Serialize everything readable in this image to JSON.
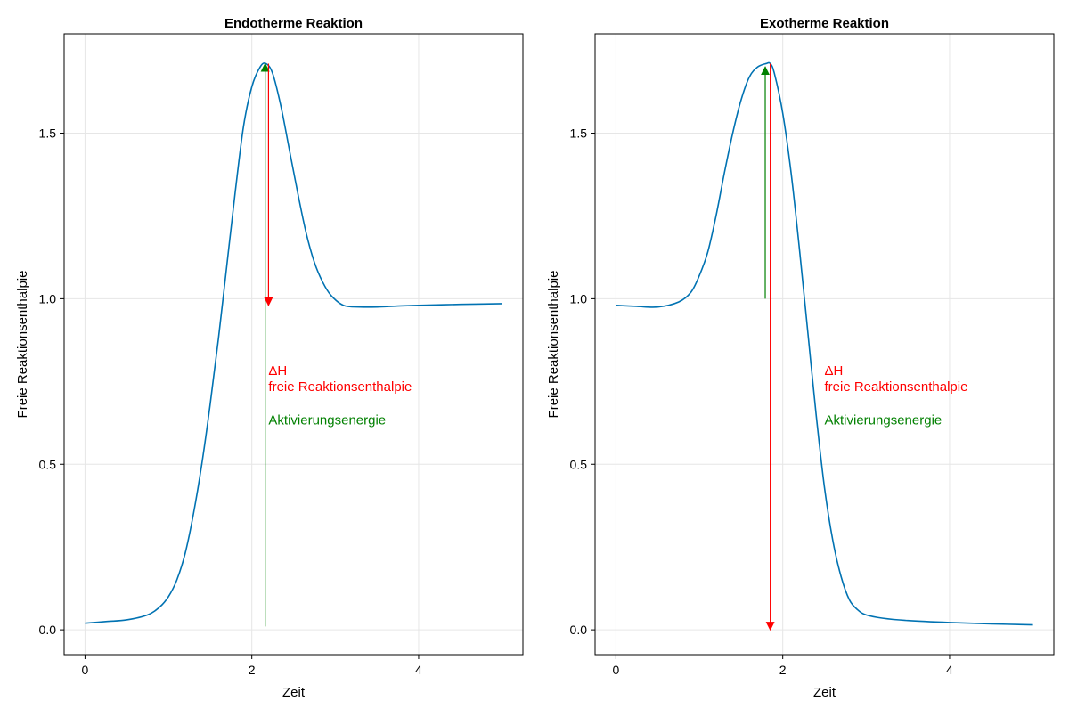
{
  "chart_data": [
    {
      "type": "line",
      "title": "Endotherme Reaktion",
      "xlabel": "Zeit",
      "ylabel": "Freie Reaktionsenthalpie",
      "xlim": [
        -0.25,
        5.25
      ],
      "ylim": [
        -0.075,
        1.8
      ],
      "xticks": [
        0,
        2,
        4
      ],
      "yticks": [
        0.0,
        0.5,
        1.0,
        1.5
      ],
      "grid": true,
      "line_color": "#0072b2",
      "series": [
        {
          "x": [
            0,
            0.25,
            0.5,
            0.75,
            0.9,
            1.0,
            1.1,
            1.2,
            1.3,
            1.4,
            1.5,
            1.6,
            1.7,
            1.8,
            1.9,
            2.0,
            2.1,
            2.17,
            2.25,
            2.35,
            2.45,
            2.55,
            2.65,
            2.75,
            2.85,
            2.95,
            3.1,
            3.3,
            3.5,
            3.75,
            4.0,
            4.5,
            5.0
          ],
          "y": [
            0.02,
            0.025,
            0.03,
            0.045,
            0.07,
            0.1,
            0.15,
            0.23,
            0.35,
            0.5,
            0.68,
            0.88,
            1.1,
            1.32,
            1.52,
            1.64,
            1.7,
            1.71,
            1.68,
            1.58,
            1.45,
            1.32,
            1.2,
            1.11,
            1.05,
            1.01,
            0.98,
            0.975,
            0.975,
            0.978,
            0.98,
            0.983,
            0.985
          ]
        }
      ],
      "annotations": [
        {
          "type": "arrow",
          "label": "Aktivierungsenergie",
          "color": "#008000",
          "x": 2.16,
          "y_from": 0.01,
          "y_to": 1.71
        },
        {
          "type": "arrow",
          "label": "freie Reaktionsenthalpie",
          "color": "#ff0000",
          "x": 2.2,
          "y_from": 1.71,
          "y_to": 0.98
        }
      ],
      "text_labels": [
        {
          "lines": [
            "ΔH",
            "freie Reaktionsenthalpie"
          ],
          "color": "#ff0000",
          "x": 2.2,
          "y": 0.77
        },
        {
          "lines": [
            "Aktivierungsenergie"
          ],
          "color": "#008000",
          "x": 2.2,
          "y": 0.62
        }
      ]
    },
    {
      "type": "line",
      "title": "Exotherme Reaktion",
      "xlabel": "Zeit",
      "ylabel": "Freie Reaktionsenthalpie",
      "xlim": [
        -0.25,
        5.25
      ],
      "ylim": [
        -0.075,
        1.8
      ],
      "xticks": [
        0,
        2,
        4
      ],
      "yticks": [
        0.0,
        0.5,
        1.0,
        1.5
      ],
      "grid": true,
      "line_color": "#0072b2",
      "series": [
        {
          "x": [
            0,
            0.25,
            0.5,
            0.75,
            0.9,
            1.0,
            1.1,
            1.2,
            1.3,
            1.4,
            1.5,
            1.6,
            1.7,
            1.8,
            1.85,
            1.9,
            2.0,
            2.1,
            2.2,
            2.3,
            2.4,
            2.5,
            2.6,
            2.7,
            2.8,
            2.9,
            3.0,
            3.2,
            3.5,
            4.0,
            4.5,
            5.0
          ],
          "y": [
            0.98,
            0.977,
            0.975,
            0.99,
            1.02,
            1.07,
            1.14,
            1.25,
            1.38,
            1.5,
            1.6,
            1.67,
            1.7,
            1.71,
            1.71,
            1.68,
            1.56,
            1.38,
            1.15,
            0.9,
            0.65,
            0.43,
            0.27,
            0.16,
            0.09,
            0.06,
            0.045,
            0.035,
            0.028,
            0.022,
            0.018,
            0.015
          ]
        }
      ],
      "annotations": [
        {
          "type": "arrow",
          "label": "Aktivierungsenergie",
          "color": "#008000",
          "x": 1.79,
          "y_from": 1.0,
          "y_to": 1.7
        },
        {
          "type": "arrow",
          "label": "freie Reaktionsenthalpie",
          "color": "#ff0000",
          "x": 1.85,
          "y_from": 1.71,
          "y_to": 0.0
        }
      ],
      "text_labels": [
        {
          "lines": [
            "ΔH",
            "freie Reaktionsenthalpie"
          ],
          "color": "#ff0000",
          "x": 2.5,
          "y": 0.77
        },
        {
          "lines": [
            "Aktivierungsenergie"
          ],
          "color": "#008000",
          "x": 2.5,
          "y": 0.62
        }
      ]
    }
  ]
}
